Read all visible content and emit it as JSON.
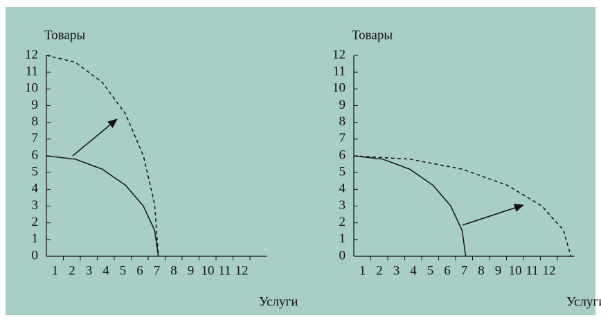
{
  "chart_data": [
    {
      "type": "line",
      "y_label": "Товары",
      "x_label": "Услуги",
      "xlim": [
        0,
        13
      ],
      "ylim": [
        0,
        12
      ],
      "xticks": [
        1,
        2,
        3,
        4,
        5,
        6,
        7,
        8,
        9,
        10,
        11,
        12
      ],
      "yticks": [
        0,
        1,
        2,
        3,
        4,
        5,
        6,
        7,
        8,
        9,
        10,
        11,
        12
      ],
      "series": [
        {
          "style": "solid",
          "color": "#111111",
          "x": [
            0,
            1.71,
            3.3,
            4.67,
            5.72,
            6.38,
            6.6
          ],
          "values": [
            6,
            5.8,
            5.2,
            4.24,
            3,
            1.55,
            0
          ]
        },
        {
          "style": "dashed",
          "color": "#111111",
          "x": [
            0,
            1.71,
            3.3,
            4.67,
            5.72,
            6.38,
            6.6
          ],
          "values": [
            12,
            11.59,
            10.39,
            8.49,
            6,
            3.11,
            0
          ]
        }
      ]
    },
    {
      "type": "line",
      "y_label": "Товары",
      "x_label": "Услуги",
      "xlim": [
        0,
        13
      ],
      "ylim": [
        0,
        12
      ],
      "xticks": [
        1,
        2,
        3,
        4,
        5,
        6,
        7,
        8,
        9,
        10,
        11,
        12
      ],
      "yticks": [
        0,
        1,
        2,
        3,
        4,
        5,
        6,
        7,
        8,
        9,
        10,
        11,
        12
      ],
      "series": [
        {
          "style": "solid",
          "color": "#111111",
          "x": [
            0,
            1.71,
            3.3,
            4.67,
            5.72,
            6.38,
            6.6
          ],
          "values": [
            6,
            5.8,
            5.2,
            4.24,
            3,
            1.55,
            0
          ]
        },
        {
          "style": "dashed",
          "color": "#111111",
          "x": [
            0,
            3.31,
            6.4,
            9.05,
            11.09,
            12.36,
            12.8
          ],
          "values": [
            6,
            5.8,
            5.2,
            4.24,
            3,
            1.55,
            0
          ]
        }
      ]
    }
  ]
}
